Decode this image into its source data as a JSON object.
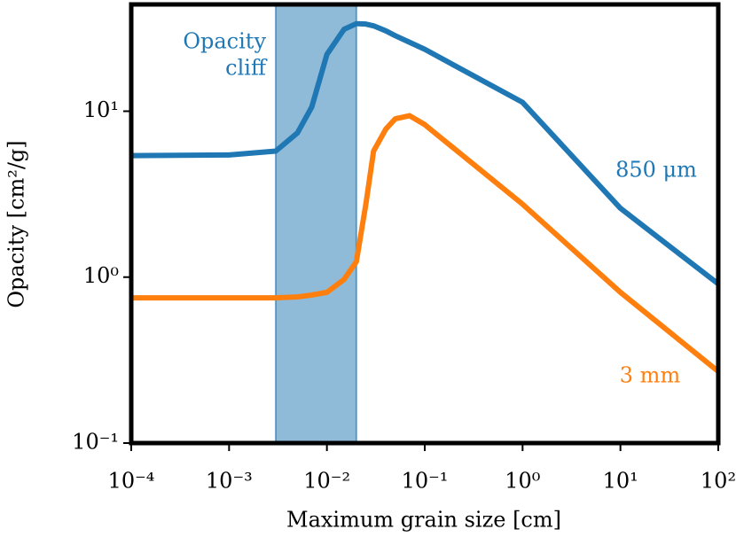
{
  "chart_data": {
    "type": "line",
    "x_label": "Maximum grain size [cm]",
    "y_label": "Opacity [cm²/g]",
    "xscale": "log",
    "yscale": "log",
    "xlim": [
      0.0001,
      100
    ],
    "ylim": [
      0.1,
      44
    ],
    "xticks": [
      {
        "value": 0.0001,
        "label": "10⁻⁴"
      },
      {
        "value": 0.001,
        "label": "10⁻³"
      },
      {
        "value": 0.01,
        "label": "10⁻²"
      },
      {
        "value": 0.1,
        "label": "10⁻¹"
      },
      {
        "value": 1,
        "label": "10⁰"
      },
      {
        "value": 10,
        "label": "10¹"
      },
      {
        "value": 100,
        "label": "10²"
      }
    ],
    "yticks": [
      {
        "value": 0.1,
        "label": "10⁻¹"
      },
      {
        "value": 1,
        "label": "10⁰"
      },
      {
        "value": 10,
        "label": "10¹"
      }
    ],
    "band": {
      "range": [
        0.003,
        0.02
      ],
      "color": "#1f77b4",
      "label": [
        "Opacity",
        "cliff"
      ]
    },
    "x": [
      0.0001,
      0.001,
      0.003,
      0.005,
      0.007,
      0.01,
      0.015,
      0.02,
      0.025,
      0.03,
      0.04,
      0.05,
      0.07,
      0.1,
      1,
      10,
      100
    ],
    "series": [
      {
        "name": "850 μm",
        "color": "#1f77b4",
        "values": [
          5.4,
          5.45,
          5.75,
          7.4,
          10.6,
          22,
          31.2,
          33.7,
          33.5,
          32.7,
          30.5,
          28.5,
          26,
          23.6,
          11.3,
          2.6,
          0.91
        ]
      },
      {
        "name": "3 mm",
        "color": "#ff7f0e",
        "values": [
          0.75,
          0.75,
          0.75,
          0.76,
          0.78,
          0.81,
          0.97,
          1.24,
          2.75,
          5.75,
          7.8,
          9.0,
          9.4,
          8.3,
          2.75,
          0.81,
          0.27
        ]
      }
    ]
  }
}
